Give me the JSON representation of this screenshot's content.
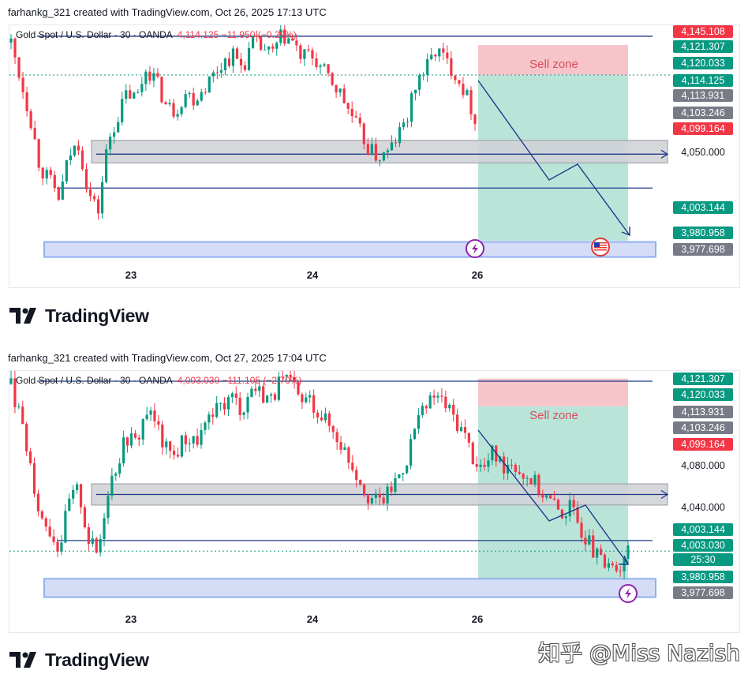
{
  "panels": [
    {
      "caption": "farhankg_321 created with TradingView.com, Oct 26, 2025 17:13 UTC",
      "legend_symbol": "Gold Spot / U.S. Dollar · 30 · OANDA",
      "legend_price": "4,114.125 −11.950 (−0.29%)",
      "zone_label": "Sell zone",
      "x_ticks": [
        "23",
        "24",
        "26"
      ],
      "price_labels": [
        {
          "text": "4,145.108",
          "color": "#f23645"
        },
        {
          "text": "4,121.307",
          "color": "#089981"
        },
        {
          "text": "4,120.033",
          "color": "#089981"
        },
        {
          "text": "4,114.125",
          "color": "#089981"
        },
        {
          "text": "4,113.931",
          "color": "#787b86"
        },
        {
          "text": "4,103.246",
          "color": "#787b86"
        },
        {
          "text": "4,099.164",
          "color": "#f23645"
        },
        {
          "text": "4,050.000",
          "color": "plain"
        },
        {
          "text": "4,003.144",
          "color": "#089981"
        },
        {
          "text": "3,980.958",
          "color": "#089981"
        },
        {
          "text": "3,977.698",
          "color": "#787b86"
        }
      ]
    },
    {
      "caption": "farhankg_321 created with TradingView.com, Oct 27, 2025 17:04 UTC",
      "legend_symbol": "Gold Spot / U.S. Dollar · 30 · OANDA",
      "legend_price": "4,003.030 −111.105 (−2.70%)",
      "zone_label": "Sell zone",
      "x_ticks": [
        "23",
        "24",
        "26"
      ],
      "price_labels": [
        {
          "text": "4,121.307",
          "color": "#089981"
        },
        {
          "text": "4,120.033",
          "color": "#089981"
        },
        {
          "text": "4,113.931",
          "color": "#787b86"
        },
        {
          "text": "4,103.246",
          "color": "#787b86"
        },
        {
          "text": "4,099.164",
          "color": "#f23645"
        },
        {
          "text": "4,080.000",
          "color": "plain"
        },
        {
          "text": "4,040.000",
          "color": "plain"
        },
        {
          "text": "4,003.144",
          "color": "#089981"
        },
        {
          "text": "4,003.030",
          "color": "#089981"
        },
        {
          "text": "25:30",
          "color": "#089981"
        },
        {
          "text": "3,980.958",
          "color": "#089981"
        },
        {
          "text": "3,977.698",
          "color": "#787b86"
        }
      ]
    }
  ],
  "brand": "TradingView",
  "watermark": "知乎 @Miss Nazish",
  "colors": {
    "up": "#089981",
    "down": "#f23645",
    "sell_zone": "#f7c5c9",
    "target_zone": "#b7e3d7",
    "support_zone": "#d4dcf6",
    "resistance_zone": "#d2d3d8",
    "line": "#1e3a8a"
  },
  "chart_data": [
    {
      "type": "candlestick",
      "symbol": "Gold Spot / U.S. Dollar",
      "interval": "30",
      "x_ticks": [
        "23",
        "24",
        "26"
      ],
      "ylim": [
        3965,
        4150
      ],
      "close_path": [
        4140,
        4110,
        4080,
        4040,
        4030,
        4015,
        4050,
        4060,
        4020,
        4005,
        4060,
        4080,
        4100,
        4095,
        4120,
        4110,
        4090,
        4085,
        4100,
        4095,
        4105,
        4115,
        4125,
        4130,
        4120,
        4140,
        4135,
        4130,
        4145,
        4142,
        4128,
        4130,
        4120,
        4110,
        4100,
        4085,
        4070,
        4055,
        4048,
        4052,
        4065,
        4080,
        4110,
        4120,
        4135,
        4125,
        4115,
        4100,
        4080
      ],
      "levels": [
        4145.108,
        4121.307,
        4120.033,
        4114.125,
        4113.931,
        4103.246,
        4099.164,
        4050.0,
        4003.144,
        3980.958,
        3977.698
      ]
    },
    {
      "type": "candlestick",
      "symbol": "Gold Spot / U.S. Dollar",
      "interval": "30",
      "x_ticks": [
        "23",
        "24",
        "26"
      ],
      "ylim": [
        3960,
        4135
      ],
      "close_path": [
        4130,
        4100,
        4070,
        4030,
        4020,
        4005,
        4040,
        4050,
        4012,
        4000,
        4050,
        4070,
        4090,
        4085,
        4110,
        4100,
        4080,
        4075,
        4090,
        4085,
        4095,
        4105,
        4115,
        4120,
        4110,
        4128,
        4123,
        4118,
        4132,
        4130,
        4116,
        4118,
        4108,
        4098,
        4088,
        4074,
        4060,
        4046,
        4040,
        4045,
        4058,
        4072,
        4100,
        4110,
        4122,
        4114,
        4104,
        4092,
        4073,
        4065,
        4078,
        4068,
        4072,
        4062,
        4058,
        4048,
        4040,
        4032,
        4036,
        4022,
        4008,
        3995,
        3988,
        3992,
        4003
      ]
    }
  ]
}
